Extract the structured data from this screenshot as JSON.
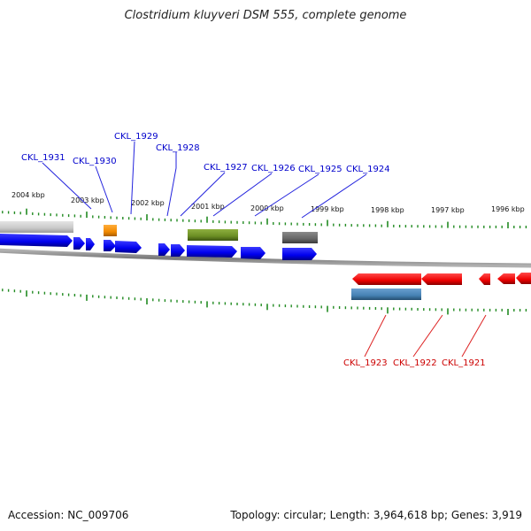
{
  "title": "Clostridium kluyveri DSM 555, complete genome",
  "footer": {
    "accession": "Accession: NC_009706",
    "summary": "Topology: circular; Length: 3,964,618 bp; Genes: 3,919"
  },
  "colors": {
    "forward_cds": "#0000ee",
    "reverse_cds": "#ee0000",
    "forward_label": "#0000cc",
    "reverse_label": "#cc0000",
    "tick": "#228b22",
    "backbone": "#888888",
    "orange_feature": "#f28a00",
    "green_feature": "#6b8e23",
    "gray_feature": "#666666",
    "steelblue_feature": "#4682b4",
    "lightgray_feature": "#c8c8c8"
  },
  "kbp_labels": [
    "2004 kbp",
    "2003 kbp",
    "2002 kbp",
    "2001 kbp",
    "2000 kbp",
    "1999 kbp",
    "1998 kbp",
    "1997 kbp",
    "1996 kbp"
  ],
  "forward_gene_labels": [
    "CKL_1931",
    "CKL_1930",
    "CKL_1929",
    "CKL_1928",
    "CKL_1927",
    "CKL_1926",
    "CKL_1925",
    "CKL_1924"
  ],
  "reverse_gene_labels": [
    "CKL_1923",
    "CKL_1922",
    "CKL_1921"
  ]
}
